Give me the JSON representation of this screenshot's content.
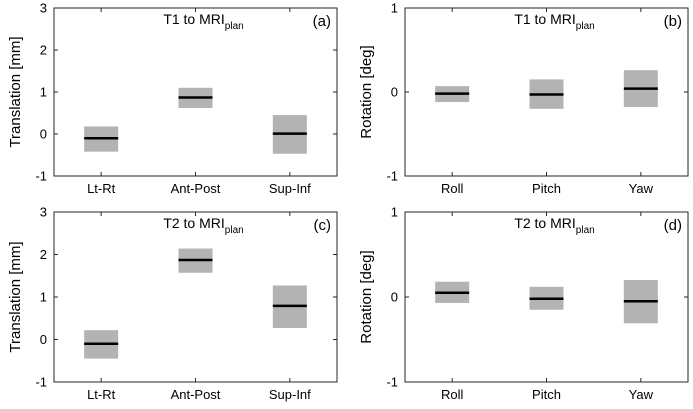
{
  "chart_data": [
    {
      "panel": "(a)",
      "type": "box",
      "title": "T1 to MRI",
      "title_subscript": "plan",
      "xlabel": "",
      "ylabel": "Translation [mm]",
      "categories": [
        "Lt-Rt",
        "Ant-Post",
        "Sup-Inf"
      ],
      "ylim": [
        -1,
        3
      ],
      "yticks": [
        "-1",
        "0",
        "1",
        "2",
        "3"
      ],
      "boxes": [
        {
          "median": -0.1,
          "low": -0.42,
          "high": 0.18
        },
        {
          "median": 0.87,
          "low": 0.62,
          "high": 1.1
        },
        {
          "median": 0.01,
          "low": -0.47,
          "high": 0.45
        }
      ]
    },
    {
      "panel": "(b)",
      "type": "box",
      "title": "T1 to MRI",
      "title_subscript": "plan",
      "xlabel": "",
      "ylabel": "Rotation [deg]",
      "categories": [
        "Roll",
        "Pitch",
        "Yaw"
      ],
      "ylim": [
        -1,
        1
      ],
      "yticks": [
        "-1",
        "0",
        "1"
      ],
      "boxes": [
        {
          "median": -0.02,
          "low": -0.12,
          "high": 0.07
        },
        {
          "median": -0.03,
          "low": -0.2,
          "high": 0.15
        },
        {
          "median": 0.04,
          "low": -0.18,
          "high": 0.26
        }
      ]
    },
    {
      "panel": "(c)",
      "type": "box",
      "title": "T2 to MRI",
      "title_subscript": "plan",
      "xlabel": "",
      "ylabel": "Translation [mm]",
      "categories": [
        "Lt-Rt",
        "Ant-Post",
        "Sup-Inf"
      ],
      "ylim": [
        -1,
        3
      ],
      "yticks": [
        "-1",
        "0",
        "1",
        "2",
        "3"
      ],
      "boxes": [
        {
          "median": -0.1,
          "low": -0.45,
          "high": 0.22
        },
        {
          "median": 1.87,
          "low": 1.57,
          "high": 2.14
        },
        {
          "median": 0.79,
          "low": 0.27,
          "high": 1.27
        }
      ]
    },
    {
      "panel": "(d)",
      "type": "box",
      "title": "T2 to MRI",
      "title_subscript": "plan",
      "xlabel": "",
      "ylabel": "Rotation [deg]",
      "categories": [
        "Roll",
        "Pitch",
        "Yaw"
      ],
      "ylim": [
        -1,
        1
      ],
      "yticks": [
        "-1",
        "0",
        "1"
      ],
      "boxes": [
        {
          "median": 0.05,
          "low": -0.07,
          "high": 0.18
        },
        {
          "median": -0.02,
          "low": -0.15,
          "high": 0.12
        },
        {
          "median": -0.05,
          "low": -0.31,
          "high": 0.2
        }
      ]
    }
  ],
  "colors": {
    "box_fill": "#b3b3b3",
    "median_line": "#000000",
    "axis": "#262626"
  }
}
